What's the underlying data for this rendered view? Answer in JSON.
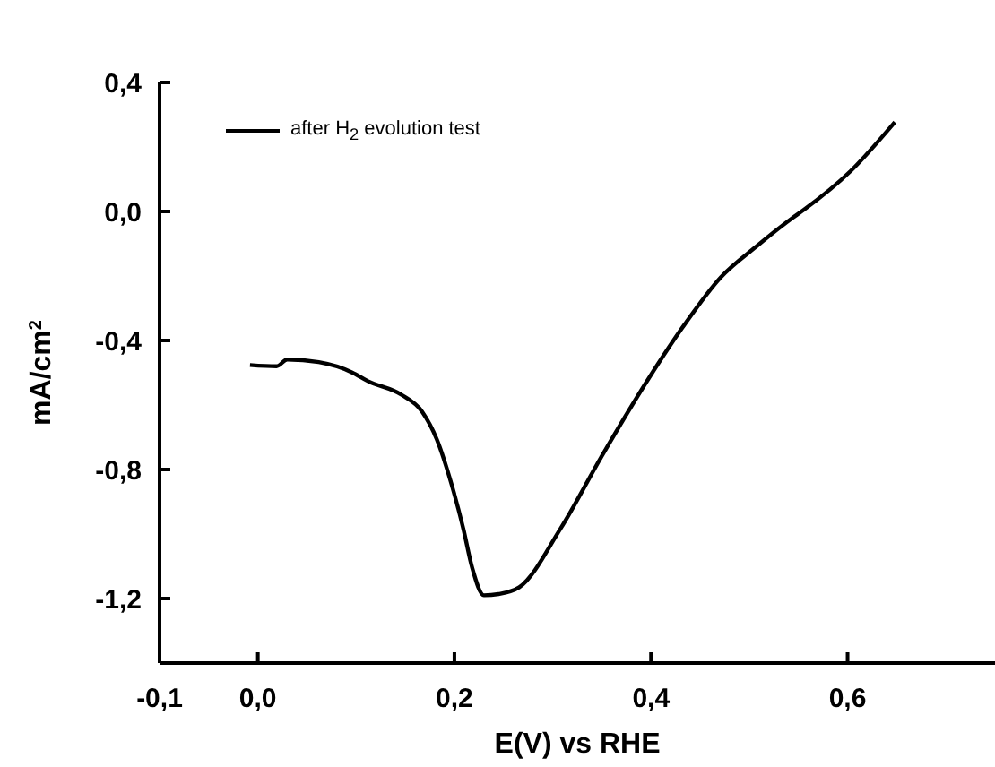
{
  "chart_data": {
    "type": "line",
    "xlabel": "E(V) vs RHE",
    "ylabel": "mA/cm$^{2}$",
    "xlim": [
      -0.1,
      0.75
    ],
    "xticks": [
      {
        "value": -0.1,
        "label": "-0,1"
      },
      {
        "value": 0,
        "label": "0,0"
      },
      {
        "value": 0.2,
        "label": "0,2"
      },
      {
        "value": 0.4,
        "label": "0,4"
      },
      {
        "value": 0.6,
        "label": "0,6"
      }
    ],
    "ylim": [
      -1.4,
      0.4
    ],
    "yticks": [
      {
        "value": -1.2,
        "label": "-1,2"
      },
      {
        "value": -0.8,
        "label": "-0,8"
      },
      {
        "value": -0.4,
        "label": "-0,4"
      },
      {
        "value": 0,
        "label": "0,0"
      },
      {
        "value": 0.4,
        "label": "0,4"
      }
    ],
    "grid": false,
    "legend": "top left",
    "marker": "none",
    "line_style": "solid",
    "series": [
      {
        "name": "after H$_{2}$ evolution test",
        "color": "#000000",
        "x": [
          -0.008,
          0.019,
          0.03,
          0.062,
          0.096,
          0.112,
          0.146,
          0.167,
          0.182,
          0.197,
          0.209,
          0.218,
          0.23,
          0.245,
          0.266,
          0.308,
          0.35,
          0.398,
          0.434,
          0.471,
          0.507,
          0.543,
          0.555,
          0.603,
          0.648
        ],
        "values": [
          -0.476,
          -0.48,
          -0.459,
          -0.467,
          -0.499,
          -0.526,
          -0.568,
          -0.62,
          -0.706,
          -0.845,
          -0.983,
          -1.104,
          -1.19,
          -1.186,
          -1.165,
          -0.983,
          -0.758,
          -0.516,
          -0.351,
          -0.204,
          -0.109,
          -0.022,
          0.004,
          0.125,
          0.277
        ]
      }
    ]
  }
}
